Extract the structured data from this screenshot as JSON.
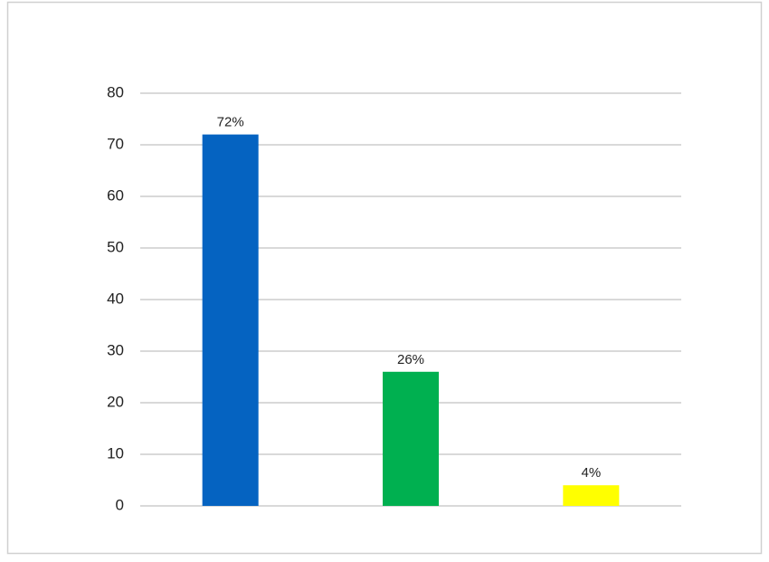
{
  "chart_data": {
    "type": "bar",
    "categories": [
      null,
      null,
      null
    ],
    "values": [
      72,
      26,
      4
    ],
    "value_labels": [
      "72%",
      "26%",
      "4%"
    ],
    "colors": [
      "#0563c1",
      "#00b050",
      "#ffff00"
    ],
    "ylim": [
      0,
      80
    ],
    "yticks": [
      0,
      10,
      20,
      30,
      40,
      50,
      60,
      70,
      80
    ],
    "grid": true
  }
}
